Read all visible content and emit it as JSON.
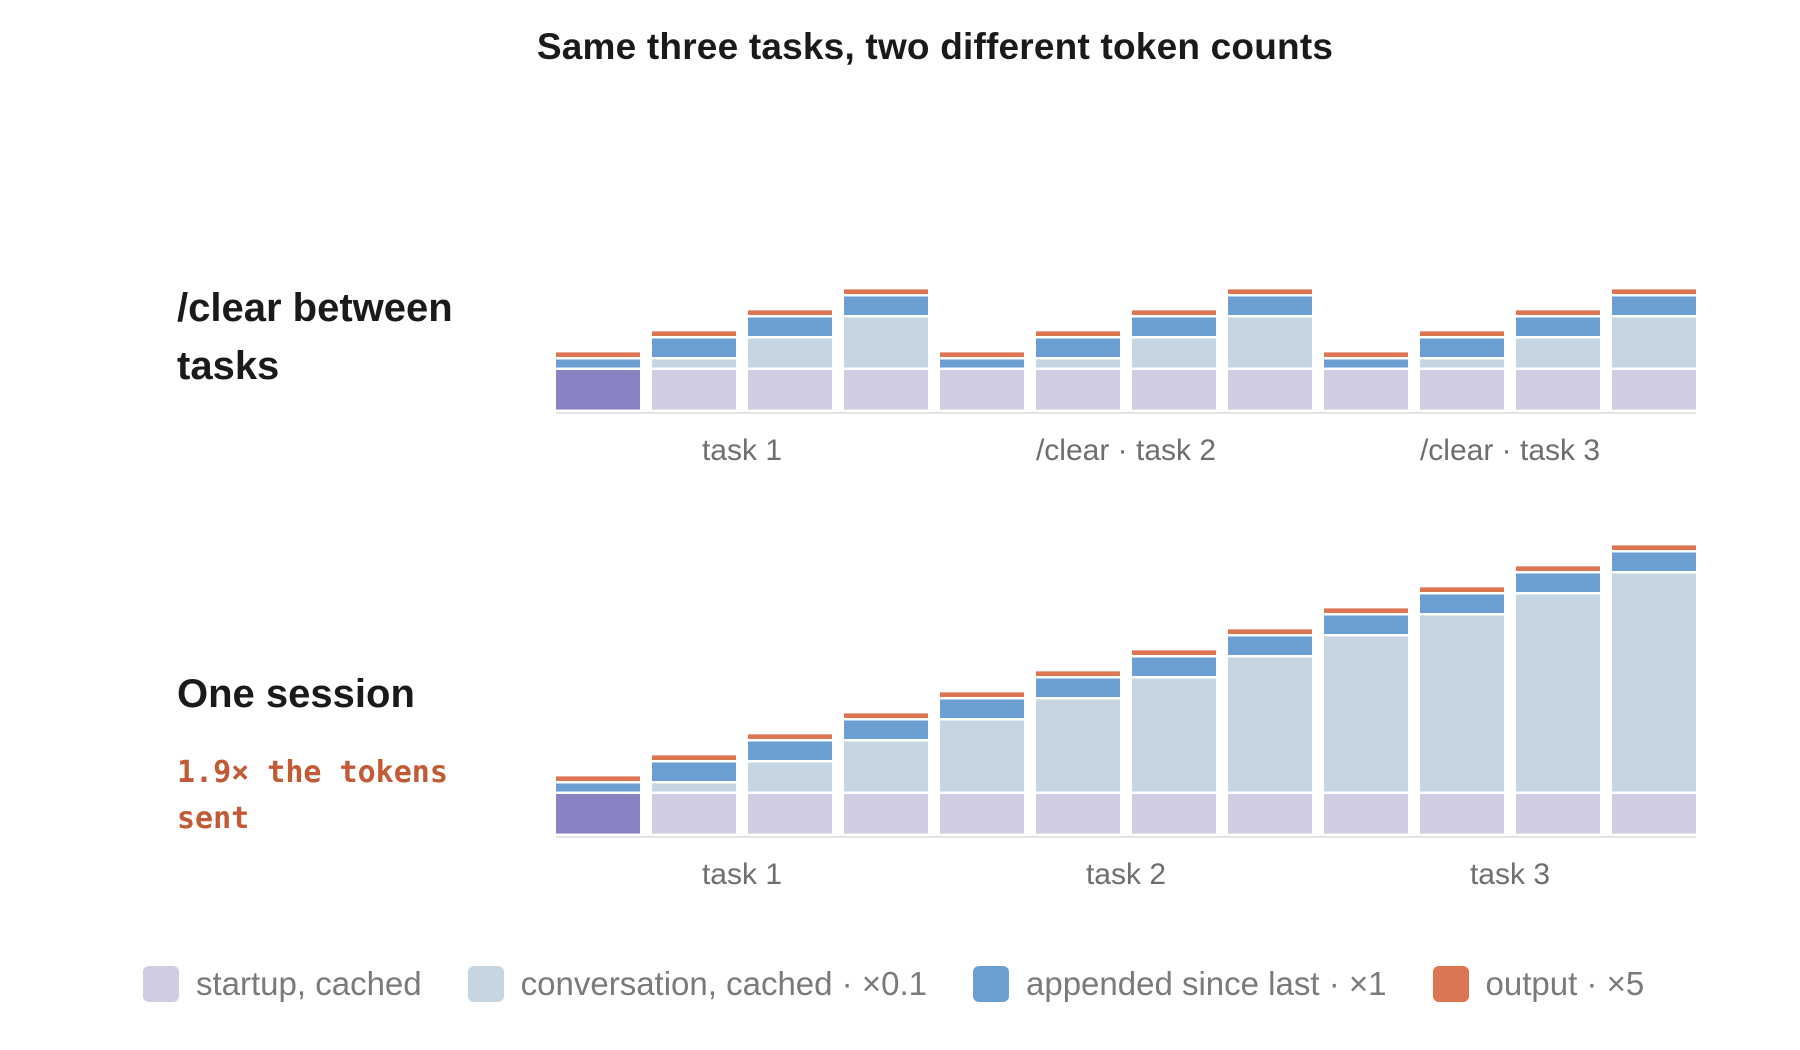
{
  "title": "Same three tasks, two different token counts",
  "legend": [
    {
      "label": "startup, cached",
      "color": "#cfcde2"
    },
    {
      "label": "conversation, cached · ×0.1",
      "color": "#c5d5e2"
    },
    {
      "label": "appended since last · ×1",
      "color": "#6b9fd4"
    },
    {
      "label": "output · ×5",
      "color": "#db7552"
    }
  ],
  "chart_data": [
    {
      "type": "bar",
      "stacked": true,
      "row_label": "/clear between tasks",
      "group_labels": [
        "task 1",
        "/clear · task 2",
        "/clear · task 3"
      ],
      "bars_per_group": 4,
      "series": [
        {
          "name": "startup, cached",
          "color": "#cfcde2",
          "values": [
            10,
            10,
            10,
            10,
            10,
            10,
            10,
            10,
            10,
            10,
            10,
            10
          ]
        },
        {
          "name": "conversation, cached · ×0.1",
          "color": "#c5d5e2",
          "values": [
            0,
            2.5,
            7.5,
            12.5,
            0,
            2.5,
            7.5,
            12.5,
            0,
            2.5,
            7.5,
            12.5
          ]
        },
        {
          "name": "appended since last · ×1",
          "color": "#6b9fd4",
          "values": [
            2.5,
            5,
            5,
            5,
            2.5,
            5,
            5,
            5,
            2.5,
            5,
            5,
            5
          ]
        },
        {
          "name": "output · ×5",
          "color": "#db7552",
          "values": [
            1.7,
            1.7,
            1.7,
            1.7,
            1.7,
            1.7,
            1.7,
            1.7,
            1.7,
            1.7,
            1.7,
            1.7
          ]
        }
      ],
      "highlight_first_startup": "#8783c2",
      "ylim": [
        0,
        70
      ]
    },
    {
      "type": "bar",
      "stacked": true,
      "row_label": "One session",
      "annotation": "1.9× the tokens sent",
      "group_labels": [
        "task 1",
        "task 2",
        "task 3"
      ],
      "bars_per_group": 4,
      "series": [
        {
          "name": "startup, cached",
          "color": "#cfcde2",
          "values": [
            10,
            10,
            10,
            10,
            10,
            10,
            10,
            10,
            10,
            10,
            10,
            10
          ]
        },
        {
          "name": "conversation, cached · ×0.1",
          "color": "#c5d5e2",
          "values": [
            0,
            2.5,
            7.5,
            12.5,
            17.5,
            22.5,
            27.5,
            32.5,
            37.5,
            42.5,
            47.5,
            52.5
          ]
        },
        {
          "name": "appended since last · ×1",
          "color": "#6b9fd4",
          "values": [
            2.5,
            5,
            5,
            5,
            5,
            5,
            5,
            5,
            5,
            5,
            5,
            5
          ]
        },
        {
          "name": "output · ×5",
          "color": "#db7552",
          "values": [
            1.7,
            1.7,
            1.7,
            1.7,
            1.7,
            1.7,
            1.7,
            1.7,
            1.7,
            1.7,
            1.7,
            1.7
          ]
        }
      ],
      "highlight_first_startup": "#8783c2",
      "ylim": [
        0,
        70
      ]
    }
  ]
}
